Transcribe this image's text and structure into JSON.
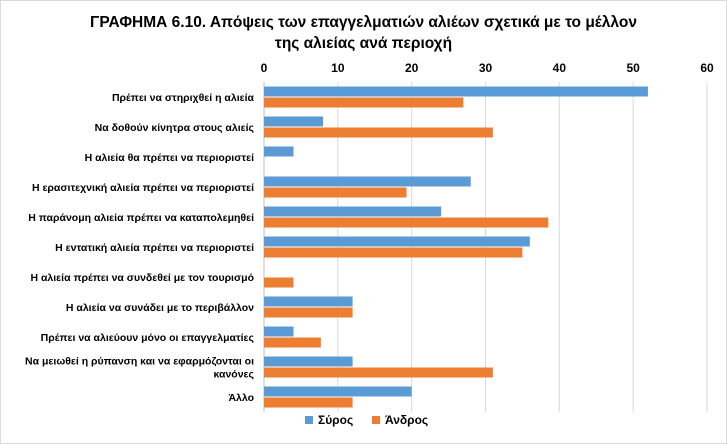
{
  "chart_data": {
    "type": "bar",
    "orientation": "horizontal",
    "title_line1": "ΓΡΑΦΗΜΑ 6.10. Απόψεις των επαγγελματιών αλιέων σχετικά με το μέλλον",
    "title_line2": "της αλιείας ανά περιοχή",
    "categories": [
      [
        "Πρέπει να στηριχθεί η αλιεία"
      ],
      [
        "Να δοθούν κίνητρα στους αλιείς"
      ],
      [
        "Η αλιεία θα πρέπει να περιοριστεί"
      ],
      [
        "Η ερασιτεχνική αλιεία πρέπει να περιοριστεί"
      ],
      [
        "Η παράνομη αλιεία πρέπει να καταπολεμηθεί"
      ],
      [
        "Η εντατική αλιεία πρέπει να περιοριστεί"
      ],
      [
        "Η αλιεία πρέπει να συνδεθεί με τον τουρισμό"
      ],
      [
        "Η αλιεία να συνάδει με το περιβάλλον"
      ],
      [
        "Πρέπει να αλιεύουν μόνο οι επαγγελματίες"
      ],
      [
        "Να μειωθεί η ρύπανση και να εφαρμόζονται οι",
        "κανόνες"
      ],
      [
        "Άλλο"
      ]
    ],
    "series": [
      {
        "name": "Σύρος",
        "color": "#5b9bd5",
        "values": [
          52,
          8,
          4,
          28,
          24,
          36,
          0,
          12,
          4,
          12,
          20
        ]
      },
      {
        "name": "Άνδρος",
        "color": "#ed7d31",
        "values": [
          27,
          31,
          0,
          19.3,
          38.5,
          35,
          4,
          12,
          7.7,
          31,
          12
        ]
      }
    ],
    "xlim": [
      0,
      60
    ],
    "xticks": [
      0,
      10,
      20,
      30,
      40,
      50,
      60
    ],
    "x_axis_position": "top",
    "grid": true,
    "legend_position": "bottom"
  }
}
